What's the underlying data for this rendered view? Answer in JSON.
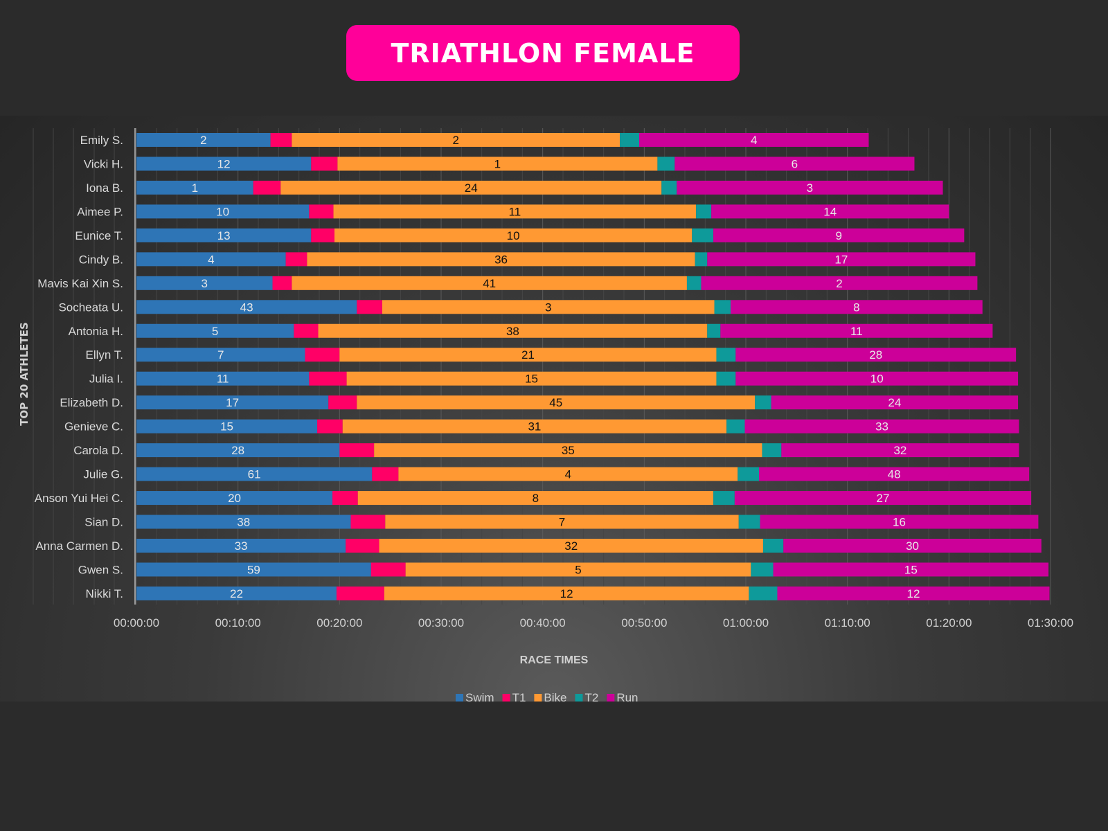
{
  "title": "TRIATHLON FEMALE",
  "chart_data": {
    "type": "bar",
    "orientation": "horizontal",
    "stacked": true,
    "xlabel": "RACE TIMES",
    "ylabel": "TOP 20 ATHLETES",
    "x_unit": "minutes",
    "xlim": [
      0,
      90
    ],
    "x_ticks": [
      "00:00:00",
      "00:10:00",
      "00:20:00",
      "00:30:00",
      "00:40:00",
      "00:50:00",
      "01:00:00",
      "01:10:00",
      "01:20:00",
      "01:30:00"
    ],
    "grid": true,
    "legend_position": "bottom",
    "categories": [
      "Emily S.",
      "Vicki H.",
      "Iona B.",
      "Aimee P.",
      "Eunice T.",
      "Cindy B.",
      "Mavis Kai Xin S.",
      "Socheata U.",
      "Antonia H.",
      "Ellyn T.",
      "Julia I.",
      "Elizabeth D.",
      "Genieve C.",
      "Carola D.",
      "Julie G.",
      "Anson Yui Hei C.",
      "Sian D.",
      "Anna Carmen D.",
      "Gwen S.",
      "Nikki T."
    ],
    "series": [
      {
        "name": "Swim",
        "color": "#2e75b6",
        "label_color": "#e8e8e8",
        "values": [
          13.2,
          17.2,
          11.5,
          17.0,
          17.2,
          14.7,
          13.4,
          21.7,
          15.5,
          16.6,
          17.0,
          18.9,
          17.8,
          20.0,
          23.2,
          19.3,
          21.1,
          20.6,
          23.1,
          19.7
        ],
        "data_labels": [
          "2",
          "12",
          "1",
          "10",
          "13",
          "4",
          "3",
          "43",
          "5",
          "7",
          "11",
          "17",
          "15",
          "28",
          "61",
          "20",
          "38",
          "33",
          "59",
          "22"
        ]
      },
      {
        "name": "T1",
        "color": "#ff0066",
        "values": [
          2.1,
          2.6,
          2.7,
          2.4,
          2.3,
          2.1,
          1.9,
          2.5,
          2.4,
          3.4,
          3.7,
          2.8,
          2.5,
          3.4,
          2.6,
          2.5,
          3.4,
          3.3,
          3.4,
          4.7
        ]
      },
      {
        "name": "Bike",
        "color": "#ff9933",
        "label_color": "#111111",
        "values": [
          32.3,
          31.5,
          37.5,
          35.7,
          35.2,
          38.2,
          38.9,
          32.7,
          38.3,
          37.1,
          36.4,
          39.2,
          37.8,
          38.2,
          33.4,
          35.0,
          34.8,
          37.8,
          34.0,
          35.9
        ],
        "data_labels": [
          "2",
          "1",
          "24",
          "11",
          "10",
          "36",
          "41",
          "3",
          "38",
          "21",
          "15",
          "45",
          "31",
          "35",
          "4",
          "8",
          "7",
          "32",
          "5",
          "12"
        ]
      },
      {
        "name": "T2",
        "color": "#0e9a9a",
        "values": [
          1.9,
          1.7,
          1.5,
          1.5,
          2.1,
          1.2,
          1.4,
          1.6,
          1.3,
          1.9,
          1.9,
          1.6,
          1.8,
          1.9,
          2.1,
          2.1,
          2.1,
          2.0,
          2.2,
          2.8
        ]
      },
      {
        "name": "Run",
        "color": "#cc0099",
        "label_color": "#e8e8e8",
        "values": [
          22.6,
          23.6,
          26.2,
          23.4,
          24.7,
          26.4,
          27.2,
          24.8,
          26.8,
          27.6,
          27.8,
          24.3,
          27.0,
          23.4,
          26.6,
          29.2,
          27.4,
          25.4,
          27.1,
          26.8
        ],
        "data_labels": [
          "4",
          "6",
          "3",
          "14",
          "9",
          "17",
          "2",
          "8",
          "11",
          "28",
          "10",
          "24",
          "33",
          "32",
          "48",
          "27",
          "16",
          "30",
          "15",
          "12"
        ]
      }
    ]
  }
}
